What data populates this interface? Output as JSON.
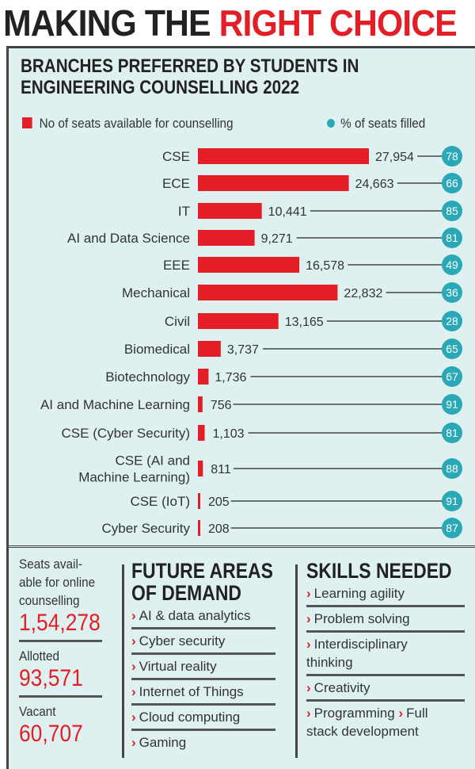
{
  "title": {
    "part1": "MAKING THE",
    "part2": "RIGHT CHOICE"
  },
  "chart_data": {
    "type": "bar",
    "title": "BRANCHES PREFERRED BY STUDENTS IN ENGINEERING COUNSELLING 2022",
    "categories": [
      "CSE",
      "ECE",
      "IT",
      "AI and Data Science",
      "EEE",
      "Mechanical",
      "Civil",
      "Biomedical",
      "Biotechnology",
      "AI and Machine Learning",
      "CSE (Cyber Security)",
      "CSE (AI and Machine Learning)",
      "CSE (IoT)",
      "Cyber Security"
    ],
    "category_lines": [
      [
        "CSE"
      ],
      [
        "ECE"
      ],
      [
        "IT"
      ],
      [
        "AI and Data Science"
      ],
      [
        "EEE"
      ],
      [
        "Mechanical"
      ],
      [
        "Civil"
      ],
      [
        "Biomedical"
      ],
      [
        "Biotechnology"
      ],
      [
        "AI and Machine Learning"
      ],
      [
        "CSE (Cyber Security)"
      ],
      [
        "CSE (AI and",
        "Machine Learning)"
      ],
      [
        "CSE (IoT)"
      ],
      [
        "Cyber Security"
      ]
    ],
    "series": [
      {
        "name": "No of seats available for counselling",
        "values": [
          27954,
          24663,
          10441,
          9271,
          16578,
          22832,
          13165,
          3737,
          1736,
          756,
          1103,
          811,
          205,
          208
        ],
        "labels": [
          "27,954",
          "24,663",
          "10,441",
          "9,271",
          "16,578",
          "22,832",
          "13,165",
          "3,737",
          "1,736",
          "756",
          "1,103",
          "811",
          "205",
          "208"
        ],
        "color": "#e41e26"
      },
      {
        "name": "% of seats filled",
        "values": [
          78,
          66,
          85,
          81,
          49,
          36,
          28,
          65,
          67,
          91,
          81,
          88,
          91,
          87
        ],
        "color": "#2aa8b5"
      }
    ],
    "legend": "top"
  },
  "stats": {
    "seats_label": [
      "Seats avail-",
      "able for online",
      "counselling"
    ],
    "seats_value": "1,54,278",
    "allotted_label": "Allotted",
    "allotted_value": "93,571",
    "vacant_label": "Vacant",
    "vacant_value": "60,707"
  },
  "future": {
    "heading": [
      "FUTURE AREAS",
      "OF DEMAND"
    ],
    "items": [
      "AI & data analytics",
      "Cyber security",
      "Virtual reality",
      "Internet of Things",
      "Cloud computing",
      "Gaming"
    ]
  },
  "skills": {
    "heading": "SKILLS NEEDED",
    "items": [
      [
        "Learning agility"
      ],
      [
        "Problem solving"
      ],
      [
        "Interdisciplinary",
        "thinking"
      ],
      [
        "Creativity"
      ],
      [
        "Programming",
        "Full",
        "stack development"
      ]
    ]
  },
  "arrow": "›"
}
